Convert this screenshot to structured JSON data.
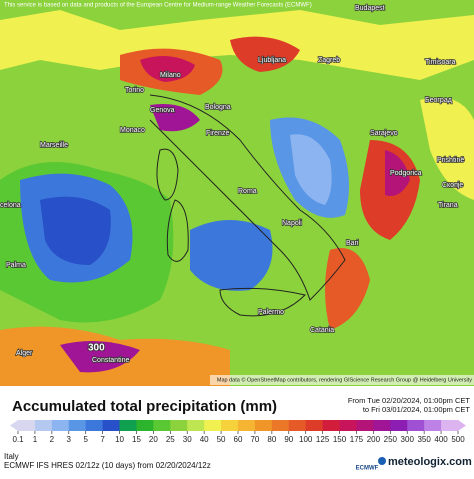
{
  "map": {
    "notice": "This service is based on data and products of the European Centre for Medium-range Weather Forecasts (ECMWF)",
    "cities": [
      "Budapest",
      "Ljubljana",
      "Zagreb",
      "Timisoara",
      "Београд",
      "Milano",
      "Torino",
      "Genova",
      "Bologna",
      "Monaco",
      "Firenze",
      "Marseille",
      "Sarajevo",
      "Podgorica",
      "Prishtinë",
      "Скопје",
      "Roma",
      "Bari",
      "Napoli",
      "Palma",
      "Palermo",
      "Catania",
      "Alger",
      "Constantine",
      "Tirana",
      "celona"
    ],
    "max_label": "300",
    "attribution": "Map data © OpenStreetMap contributors, rendering GIScience Research Group @ Heidelberg University"
  },
  "legend": {
    "title": "Accumulated total precipitation (mm)",
    "period_from": "From Tue 02/20/2024, 01:00pm CET",
    "period_to": "to Fri 03/01/2024, 01:00pm CET",
    "ticks": [
      0.1,
      1,
      2,
      3,
      5,
      7,
      10,
      15,
      20,
      25,
      30,
      40,
      50,
      60,
      70,
      80,
      90,
      100,
      125,
      150,
      175,
      200,
      250,
      300,
      350,
      400,
      500
    ],
    "colors": [
      "#d7d7ef",
      "#b4c8f0",
      "#8cb4f0",
      "#5a96e6",
      "#3c78dc",
      "#2850c8",
      "#0fa050",
      "#2cb42c",
      "#5ac832",
      "#8cd23c",
      "#bee650",
      "#f0f050",
      "#f5d23c",
      "#f5b432",
      "#f09628",
      "#eb7828",
      "#e65a28",
      "#dc3c28",
      "#d21e3c",
      "#c8145a",
      "#b41478",
      "#a01496",
      "#8c1eb4",
      "#a050d2",
      "#be82e6",
      "#dcb4f0"
    ]
  },
  "footer": {
    "region": "Italy",
    "model": "ECMWF IFS HRES 02/12z (10 days) from 02/20/2024/12z",
    "ecmwf": "ECMWF",
    "site": "meteologix.com"
  }
}
